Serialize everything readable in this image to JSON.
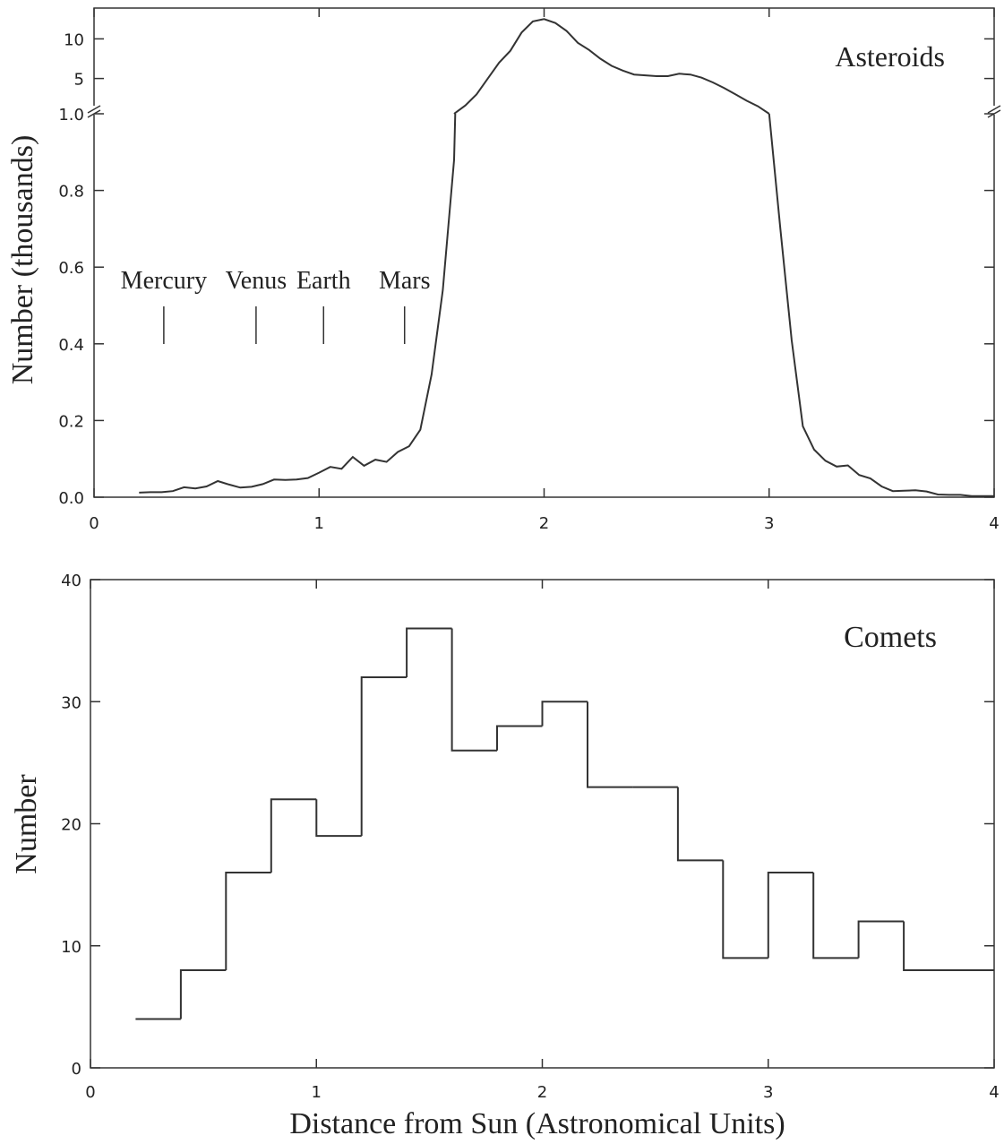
{
  "chart_data": [
    {
      "type": "line",
      "panel_label": "Asteroids",
      "ylabel": "Number (thousands)",
      "xlabel": "",
      "xlim": [
        0,
        4
      ],
      "x_ticks": [
        "0",
        "1",
        "2",
        "3",
        "4"
      ],
      "ylim_lower": [
        0,
        1.0
      ],
      "ylim_upper": [
        1,
        14
      ],
      "y_ticks_lower": [
        "0.0",
        "0.2",
        "0.4",
        "0.6",
        "0.8",
        "1.0"
      ],
      "y_ticks_upper": [
        "5",
        "10"
      ],
      "axis_break": "between 1.0 and 5",
      "planets": [
        {
          "name": "Mercury",
          "x": 0.31
        },
        {
          "name": "Venus",
          "x": 0.72
        },
        {
          "name": "Earth",
          "x": 1.02
        },
        {
          "name": "Mars",
          "x": 1.38
        }
      ],
      "series": [
        {
          "x": [
            0.2,
            0.25,
            0.3,
            0.35,
            0.4,
            0.45,
            0.5,
            0.55,
            0.6,
            0.65,
            0.7,
            0.75,
            0.8,
            0.85,
            0.9,
            0.95,
            1.0,
            1.05,
            1.1,
            1.15,
            1.2,
            1.25,
            1.3,
            1.35,
            1.4,
            1.45,
            1.5,
            1.55,
            1.6,
            1.605
          ],
          "y": [
            0.012,
            0.013,
            0.013,
            0.016,
            0.026,
            0.023,
            0.028,
            0.042,
            0.033,
            0.025,
            0.027,
            0.034,
            0.046,
            0.045,
            0.046,
            0.05,
            0.064,
            0.079,
            0.074,
            0.105,
            0.082,
            0.098,
            0.092,
            0.118,
            0.133,
            0.176,
            0.32,
            0.54,
            0.88,
            1.0
          ]
        },
        {
          "x": [
            1.6,
            1.65,
            1.7,
            1.75,
            1.8,
            1.85,
            1.9,
            1.95,
            2.0,
            2.05,
            2.1,
            2.15,
            2.2,
            2.25,
            2.3,
            2.35,
            2.4,
            2.45,
            2.5,
            2.55,
            2.6,
            2.65,
            2.7,
            2.75,
            2.8,
            2.85,
            2.9,
            2.95,
            3.0
          ],
          "y": [
            1.0,
            1.6,
            3.0,
            5.0,
            7.0,
            8.5,
            10.8,
            12.2,
            12.5,
            12.0,
            11.0,
            9.5,
            8.6,
            7.5,
            6.6,
            6.0,
            5.5,
            5.4,
            5.3,
            5.3,
            5.6,
            5.5,
            5.1,
            4.5,
            3.8,
            3.0,
            2.2,
            1.5,
            1.0
          ]
        },
        {
          "x": [
            3.0,
            3.05,
            3.1,
            3.15,
            3.2,
            3.25,
            3.3,
            3.35,
            3.4,
            3.45,
            3.5,
            3.55,
            3.6,
            3.65,
            3.7,
            3.75,
            3.8,
            3.85,
            3.9,
            3.95,
            4.0
          ],
          "y": [
            1.0,
            0.7,
            0.41,
            0.185,
            0.124,
            0.095,
            0.08,
            0.083,
            0.058,
            0.049,
            0.028,
            0.016,
            0.017,
            0.018,
            0.015,
            0.007,
            0.006,
            0.006,
            0.003,
            0.003,
            0.003
          ]
        }
      ]
    },
    {
      "type": "bar",
      "panel_label": "Comets",
      "ylabel": "Number",
      "xlabel": "Distance from Sun (Astronomical Units)",
      "xlim": [
        0,
        4
      ],
      "x_ticks": [
        "0",
        "1",
        "2",
        "3",
        "4"
      ],
      "ylim": [
        0,
        40
      ],
      "y_ticks": [
        "0",
        "10",
        "20",
        "30",
        "40"
      ],
      "bin_edges": [
        0.2,
        0.4,
        0.6,
        0.8,
        1.0,
        1.2,
        1.4,
        1.6,
        1.8,
        2.0,
        2.2,
        2.4,
        2.6,
        2.8,
        3.0,
        3.2,
        3.4,
        3.6,
        3.8,
        4.0
      ],
      "values": [
        4,
        8,
        16,
        22,
        19,
        32,
        36,
        26,
        28,
        30,
        23,
        23,
        17,
        9,
        16,
        9,
        12,
        8,
        8
      ]
    }
  ]
}
